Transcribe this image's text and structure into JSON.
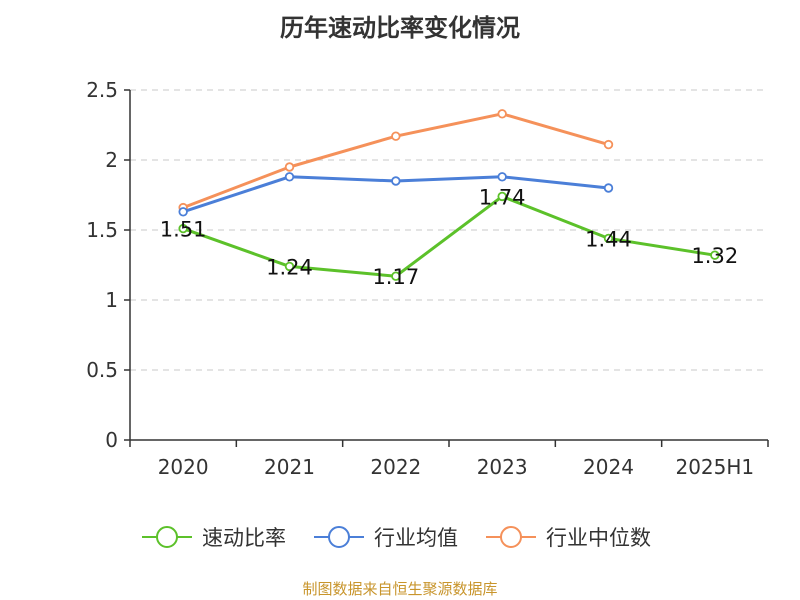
{
  "chart_data": {
    "type": "line",
    "title": "历年速动比率变化情况",
    "xlabel": "",
    "ylabel": "",
    "categories": [
      "2020",
      "2021",
      "2022",
      "2023",
      "2024",
      "2025H1"
    ],
    "ylim": [
      0,
      2.5
    ],
    "yticks": [
      "0",
      "0.5",
      "1",
      "1.5",
      "2",
      "2.5"
    ],
    "grid": true,
    "legend_position": "bottom",
    "series": [
      {
        "name": "速动比率",
        "color": "#5cc12a",
        "values": [
          1.51,
          1.24,
          1.17,
          1.74,
          1.44,
          1.32
        ],
        "labels": [
          "1.51",
          "1.24",
          "1.17",
          "1.74",
          "1.44",
          "1.32"
        ]
      },
      {
        "name": "行业均值",
        "color": "#4b7fd8",
        "values": [
          1.63,
          1.88,
          1.85,
          1.88,
          1.8,
          null
        ]
      },
      {
        "name": "行业中位数",
        "color": "#f5915a",
        "values": [
          1.66,
          1.95,
          2.17,
          2.33,
          2.11,
          null
        ]
      }
    ]
  },
  "source_note": "制图数据来自恒生聚源数据库"
}
